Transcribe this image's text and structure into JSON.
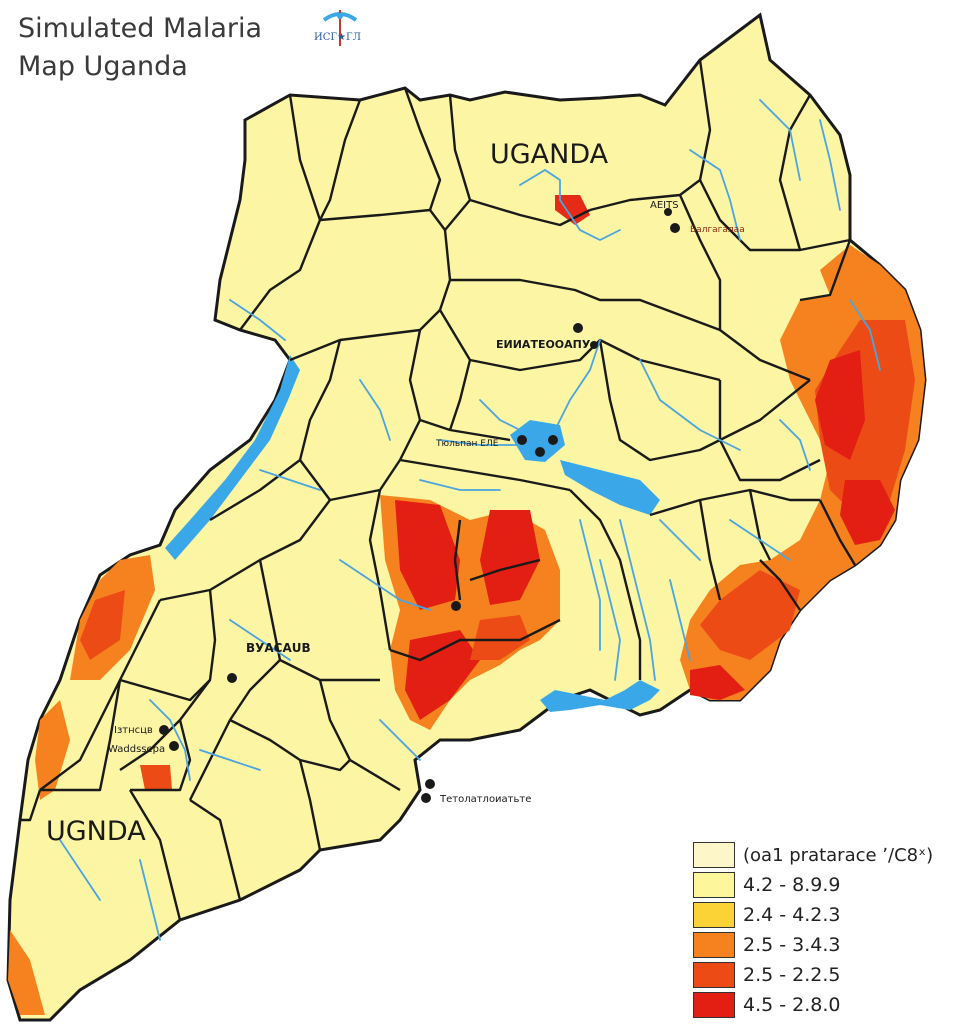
{
  "title": {
    "line1": "Simulated Malaria",
    "line2": "Map Uganda"
  },
  "logo_text": "ИСГ★ГЛ",
  "labels": {
    "country_top": "UGANDA",
    "country_bottom": "UGNDA",
    "city_north": "AЕITS",
    "city_gulu": "ЕИИАТЕООАПУ",
    "city_center": "Тюльпан ЕЛЕ",
    "city_west": "ВУАСАUВ",
    "city_sw1": "Iзтнсцв",
    "city_sw2": "Waddssepa",
    "city_south": "Тетолатлоиатьте",
    "city_northeast": "Балгагалаa"
  },
  "legend": {
    "title": "(oa1 pratarace ʼ/С8ˣ)",
    "items": [
      {
        "label": "4.2 - 8.9.9",
        "color": "#fdf69b"
      },
      {
        "label": "2.4 - 4.2.3",
        "color": "#fcd336"
      },
      {
        "label": "2.5 - 3.4.3",
        "color": "#f5821f"
      },
      {
        "label": "2.5 - 2.2.5",
        "color": "#ec4b16"
      },
      {
        "label": "4.5 - 2.8.0",
        "color": "#e31e13"
      }
    ],
    "title_color": "#fdf6c8"
  },
  "colors": {
    "land": "#fbf5a4",
    "border": "#1a1a1a",
    "water": "#3aa8e8",
    "river": "#4aa5e0",
    "orange": "#f5821f",
    "red": "#e62a18",
    "deep_orange": "#ee5b17"
  }
}
